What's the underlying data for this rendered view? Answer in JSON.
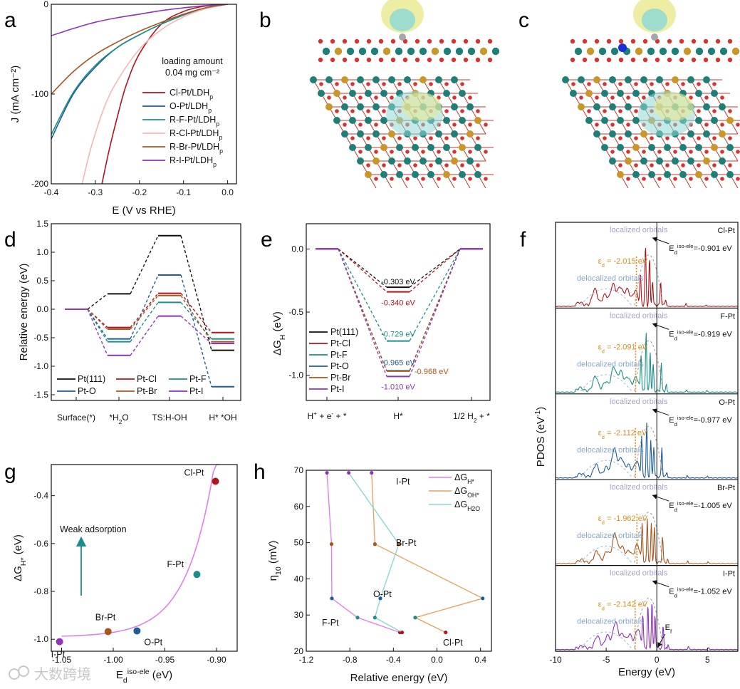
{
  "panels": {
    "a": "a",
    "b": "b",
    "c": "c",
    "d": "d",
    "e": "e",
    "f": "f",
    "g": "g",
    "h": "h"
  },
  "colors": {
    "Cl": "#b0151c",
    "O": "#1f5d95",
    "F": "#1b8e8c",
    "RCl": "#f2b8b4",
    "Br": "#a8561c",
    "I": "#8f33b7",
    "Pt111": "#111111",
    "pink": "#e080e8",
    "orange": "#e5a460",
    "cyan": "#8ad7d6"
  },
  "watermark": "大数跨境",
  "chart_data": [
    {
      "panel": "a",
      "type": "line",
      "xlabel": "E (V vs RHE)",
      "ylabel": "J (mA cm⁻²)",
      "xlim": [
        -0.4,
        0.02
      ],
      "ylim": [
        -200,
        0
      ],
      "xticks": [
        "-0.4",
        "-0.3",
        "-0.2",
        "-0.1",
        "0.0"
      ],
      "yticks": [
        "0",
        "-100",
        "-200"
      ],
      "annotation": [
        "loading amount",
        "0.04 mg cm⁻²"
      ],
      "series": [
        {
          "name": "Cl-Pt/LDHp",
          "color": "Cl",
          "x": [
            0.0,
            -0.05,
            -0.1,
            -0.15,
            -0.2,
            -0.23,
            -0.25,
            -0.27,
            -0.285
          ],
          "y": [
            0,
            -2,
            -8,
            -22,
            -55,
            -90,
            -125,
            -165,
            -200
          ]
        },
        {
          "name": "O-Pt/LDHp",
          "color": "O",
          "x": [
            0.0,
            -0.05,
            -0.1,
            -0.15,
            -0.2,
            -0.25,
            -0.3,
            -0.35,
            -0.4
          ],
          "y": [
            0,
            -4,
            -12,
            -22,
            -34,
            -48,
            -70,
            -100,
            -150
          ]
        },
        {
          "name": "R-F-Pt/LDHp",
          "color": "F",
          "x": [
            0.0,
            -0.05,
            -0.1,
            -0.15,
            -0.2,
            -0.25,
            -0.3,
            -0.35,
            -0.4
          ],
          "y": [
            0,
            -4,
            -12,
            -22,
            -34,
            -48,
            -68,
            -98,
            -145
          ]
        },
        {
          "name": "R-Cl-Pt/LDHp",
          "color": "RCl",
          "x": [
            0.0,
            -0.05,
            -0.1,
            -0.15,
            -0.2,
            -0.25,
            -0.28,
            -0.31,
            -0.33
          ],
          "y": [
            0,
            -5,
            -14,
            -28,
            -50,
            -85,
            -115,
            -160,
            -200
          ]
        },
        {
          "name": "R-Br-Pt/LDHp",
          "color": "Br",
          "x": [
            0.0,
            -0.05,
            -0.1,
            -0.15,
            -0.2,
            -0.25,
            -0.3,
            -0.35,
            -0.4
          ],
          "y": [
            0,
            -4,
            -11,
            -20,
            -30,
            -42,
            -56,
            -75,
            -100
          ]
        },
        {
          "name": "R-I-Pt/LDHp",
          "color": "I",
          "x": [
            0.0,
            -0.05,
            -0.1,
            -0.15,
            -0.2,
            -0.25,
            -0.3,
            -0.35,
            -0.4
          ],
          "y": [
            0,
            -1.5,
            -4,
            -7,
            -11,
            -15,
            -20,
            -27,
            -35
          ]
        }
      ]
    },
    {
      "panel": "d",
      "type": "line",
      "ylabel": "Relative energy (eV)",
      "categories": [
        "Surface(*)",
        "*H₂O",
        "TS:H-OH",
        "H* *OH"
      ],
      "ylim": [
        -1.6,
        1.5
      ],
      "yticks": [
        "1.5",
        "1.0",
        "0.5",
        "0.0",
        "-0.5",
        "-1.0",
        "-1.5"
      ],
      "series": [
        {
          "name": "Pt(111)",
          "color": "Pt111",
          "values": [
            0,
            0.27,
            1.29,
            -0.72
          ]
        },
        {
          "name": "Pt-Cl",
          "color": "Cl",
          "values": [
            0,
            -0.32,
            0.28,
            -0.41
          ]
        },
        {
          "name": "Pt-F",
          "color": "F",
          "values": [
            0,
            -0.57,
            0.12,
            -0.52
          ]
        },
        {
          "name": "Pt-O",
          "color": "O",
          "values": [
            0,
            -0.52,
            0.6,
            -1.36
          ]
        },
        {
          "name": "Pt-Br",
          "color": "Br",
          "values": [
            0,
            -0.35,
            0.24,
            -0.57
          ]
        },
        {
          "name": "Pt-I",
          "color": "I",
          "values": [
            0,
            -0.81,
            -0.12,
            -0.6
          ]
        }
      ]
    },
    {
      "panel": "e",
      "type": "line",
      "ylabel": "ΔG_H (eV)",
      "categories": [
        "H⁺ + e⁻ + *",
        "H*",
        "1/2 H₂ + *"
      ],
      "ylim": [
        -1.2,
        0.2
      ],
      "yticks": [
        "0.0",
        "-0.5",
        "-1.0"
      ],
      "series": [
        {
          "name": "Pt(111)",
          "color": "Pt111",
          "value": -0.303,
          "label": "-0.303 eV"
        },
        {
          "name": "Pt-Cl",
          "color": "Cl",
          "value": -0.34,
          "label": "-0.340 eV"
        },
        {
          "name": "Pt-F",
          "color": "F",
          "value": -0.729,
          "label": "-0.729 eV"
        },
        {
          "name": "Pt-O",
          "color": "O",
          "value": -0.965,
          "label": "-0.965 eV"
        },
        {
          "name": "Pt-Br",
          "color": "Br",
          "value": -0.968,
          "label": "-0.968 eV"
        },
        {
          "name": "Pt-I",
          "color": "I",
          "value": -1.01,
          "label": "-1.010 eV"
        }
      ]
    },
    {
      "panel": "f",
      "type": "line",
      "ylabel": "PDOS (eV⁻¹)",
      "xlabel": "Energy (eV)",
      "xlim": [
        -10,
        8
      ],
      "xticks": [
        "-10",
        "-5",
        "0",
        "5"
      ],
      "fermi_label": "E_f",
      "localized": "localized orbitals",
      "delocalized": "delocalized orbitals",
      "subpanels": [
        {
          "name": "Cl-Pt",
          "color": "Cl",
          "eps_d": "ε_d = -2.015 eV",
          "eps_value": -2.015,
          "ed_iso": "E_d^iso-ele =-0.901 eV"
        },
        {
          "name": "F-Pt",
          "color": "F",
          "eps_d": "ε_d = -2.091 eV",
          "eps_value": -2.091,
          "ed_iso": "E_d^iso-ele =-0.919 eV"
        },
        {
          "name": "O-Pt",
          "color": "O",
          "eps_d": "ε_d = -2.112 eV",
          "eps_value": -2.112,
          "ed_iso": "E_d^iso-ele =-0.977 eV"
        },
        {
          "name": "Br-Pt",
          "color": "Br",
          "eps_d": "ε_d = -1.962 eV",
          "eps_value": -1.962,
          "ed_iso": "E_d^iso-ele =-1.005 eV"
        },
        {
          "name": "I-Pt",
          "color": "I",
          "eps_d": "ε_d = -2.142 eV",
          "eps_value": -2.142,
          "ed_iso": "E_d^iso-ele =-1.052 eV"
        }
      ]
    },
    {
      "panel": "g",
      "type": "scatter",
      "xlabel": "E_d iso-ele (eV)",
      "ylabel": "ΔG_H* (eV)",
      "xlim": [
        -1.06,
        -0.88
      ],
      "ylim": [
        -1.05,
        -0.27
      ],
      "xticks": [
        "-1.05",
        "-1.00",
        "-0.95",
        "-0.90"
      ],
      "yticks": [
        "-0.4",
        "-0.6",
        "-0.8",
        "-1.0"
      ],
      "arrow_text": "Weak adsorption",
      "points": [
        {
          "label": "Cl-Pt",
          "x": -0.901,
          "y": -0.34,
          "color": "Cl"
        },
        {
          "label": "F-Pt",
          "x": -0.919,
          "y": -0.729,
          "color": "F"
        },
        {
          "label": "O-Pt",
          "x": -0.977,
          "y": -0.965,
          "color": "O"
        },
        {
          "label": "Br-Pt",
          "x": -1.005,
          "y": -0.968,
          "color": "Br"
        },
        {
          "label": "I-Pt",
          "x": -1.052,
          "y": -1.01,
          "color": "I"
        }
      ]
    },
    {
      "panel": "h",
      "type": "scatter",
      "xlabel": "Relative energy (eV)",
      "ylabel": "η₁₀ (mV)",
      "xlim": [
        -1.2,
        0.5
      ],
      "ylim": [
        20,
        70
      ],
      "xticks": [
        "-1.2",
        "-0.8",
        "-0.4",
        "0.0",
        "0.4"
      ],
      "yticks": [
        "20",
        "30",
        "40",
        "50",
        "60",
        "70"
      ],
      "group_labels": [
        "I-Pt",
        "Br-Pt",
        "O-Pt",
        "F-Pt",
        "Cl-Pt"
      ],
      "series": [
        {
          "name": "ΔG_H*",
          "color": "pink",
          "points": [
            {
              "x": -1.01,
              "y": 69.3
            },
            {
              "x": -0.968,
              "y": 49.6
            },
            {
              "x": -0.965,
              "y": 34.6
            },
            {
              "x": -0.729,
              "y": 29.3
            },
            {
              "x": -0.34,
              "y": 25.2
            }
          ]
        },
        {
          "name": "ΔG_OH*",
          "color": "orange",
          "points": [
            {
              "x": -0.6,
              "y": 69.3
            },
            {
              "x": -0.57,
              "y": 49.6
            },
            {
              "x": 0.42,
              "y": 34.6
            },
            {
              "x": -0.2,
              "y": 29.3
            },
            {
              "x": 0.08,
              "y": 25.2
            }
          ]
        },
        {
          "name": "ΔG_H₂O",
          "color": "cyan",
          "points": [
            {
              "x": -0.81,
              "y": 69.3
            },
            {
              "x": -0.35,
              "y": 49.6
            },
            {
              "x": -0.52,
              "y": 34.6
            },
            {
              "x": -0.57,
              "y": 29.3
            },
            {
              "x": -0.32,
              "y": 25.2
            }
          ]
        }
      ]
    }
  ]
}
